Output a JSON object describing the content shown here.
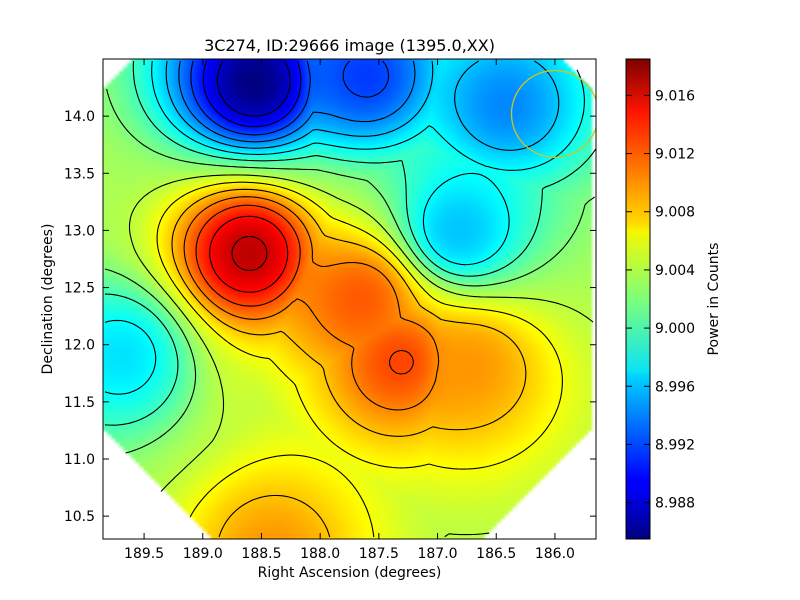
{
  "chart_data": {
    "type": "heatmap",
    "title": "3C274, ID:29666 image (1395.0,XX)",
    "xlabel": "Right Ascension (degrees)",
    "ylabel": "Declination (degrees)",
    "xlim": [
      189.85,
      185.65
    ],
    "ylim": [
      10.3,
      14.5
    ],
    "x_ticks": [
      189.5,
      189.0,
      188.5,
      188.0,
      187.5,
      187.0,
      186.5,
      186.0
    ],
    "x_tick_labels": [
      "189.5",
      "189.0",
      "188.5",
      "188.0",
      "187.5",
      "187.0",
      "186.5",
      "186.0"
    ],
    "y_ticks": [
      10.5,
      11.0,
      11.5,
      12.0,
      12.5,
      13.0,
      13.5,
      14.0
    ],
    "y_tick_labels": [
      "10.5",
      "11.0",
      "11.5",
      "12.0",
      "12.5",
      "13.0",
      "13.5",
      "14.0"
    ],
    "colormap": "jet",
    "colorbar": {
      "label": "Power in Counts",
      "vmin": 8.9855,
      "vmax": 9.0185,
      "ticks": [
        8.988,
        8.992,
        8.996,
        9.0,
        9.004,
        9.008,
        9.012,
        9.016
      ],
      "tick_labels": [
        "8.988",
        "8.992",
        "8.996",
        "9.000",
        "9.004",
        "9.008",
        "9.012",
        "9.016"
      ]
    },
    "features": [
      {
        "kind": "peak",
        "ra": 188.6,
        "dec": 12.8,
        "value": 9.0165
      },
      {
        "kind": "peak",
        "ra": 187.3,
        "dec": 11.85,
        "value": 9.0122
      },
      {
        "kind": "peak",
        "ra": 187.65,
        "dec": 12.4,
        "value": 9.0115
      },
      {
        "kind": "peak",
        "ra": 186.7,
        "dec": 11.8,
        "value": 9.0095
      },
      {
        "kind": "peak",
        "ra": 188.4,
        "dec": 10.2,
        "value": 9.0095
      },
      {
        "kind": "minimum",
        "ra": 188.55,
        "dec": 14.3,
        "value": 8.9855
      },
      {
        "kind": "minimum",
        "ra": 187.6,
        "dec": 14.35,
        "value": 8.9915
      },
      {
        "kind": "minimum",
        "ra": 186.4,
        "dec": 14.1,
        "value": 8.994
      },
      {
        "kind": "minimum",
        "ra": 189.7,
        "dec": 11.9,
        "value": 8.997
      },
      {
        "kind": "minimum",
        "ra": 186.8,
        "dec": 13.0,
        "value": 8.996
      }
    ],
    "beam_circle": {
      "ra": 186.0,
      "dec": 14.02,
      "radius_deg": 0.37,
      "color": "#c8c820"
    },
    "contour_levels": [
      8.988,
      8.99,
      8.992,
      8.994,
      8.996,
      8.998,
      9.0,
      9.002,
      9.004,
      9.006,
      9.008,
      9.01,
      9.012,
      9.014,
      9.016
    ],
    "grid": false,
    "legend": "colorbar-right"
  }
}
